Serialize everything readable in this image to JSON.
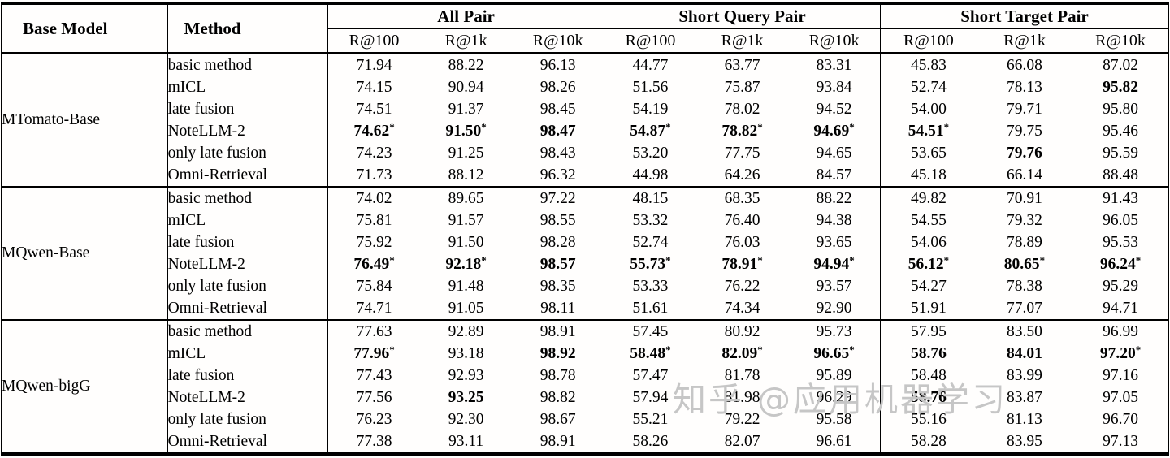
{
  "watermark": {
    "text": "知乎 @应用机器学习",
    "color": "#c6c6c6"
  },
  "table": {
    "header": {
      "base_model": "Base Model",
      "method": "Method"
    },
    "groups": [
      {
        "label": "All Pair",
        "subcols": [
          "R@100",
          "R@1k",
          "R@10k"
        ]
      },
      {
        "label": "Short Query Pair",
        "subcols": [
          "R@100",
          "R@1k",
          "R@10k"
        ]
      },
      {
        "label": "Short Target Pair",
        "subcols": [
          "R@100",
          "R@1k",
          "R@10k"
        ]
      }
    ],
    "blocks": [
      {
        "base_model": "MTomato-Base",
        "rows": [
          {
            "method": "basic method",
            "cells": [
              {
                "v": "71.94"
              },
              {
                "v": "88.22"
              },
              {
                "v": "96.13"
              },
              {
                "v": "44.77"
              },
              {
                "v": "63.77"
              },
              {
                "v": "83.31"
              },
              {
                "v": "45.83"
              },
              {
                "v": "66.08"
              },
              {
                "v": "87.02"
              }
            ]
          },
          {
            "method": "mICL",
            "cells": [
              {
                "v": "74.15"
              },
              {
                "v": "90.94"
              },
              {
                "v": "98.26"
              },
              {
                "v": "51.56"
              },
              {
                "v": "75.87"
              },
              {
                "v": "93.84"
              },
              {
                "v": "52.74"
              },
              {
                "v": "78.13"
              },
              {
                "v": "95.82",
                "b": 1
              }
            ]
          },
          {
            "method": "late fusion",
            "cells": [
              {
                "v": "74.51"
              },
              {
                "v": "91.37"
              },
              {
                "v": "98.45"
              },
              {
                "v": "54.19"
              },
              {
                "v": "78.02"
              },
              {
                "v": "94.52"
              },
              {
                "v": "54.00"
              },
              {
                "v": "79.71"
              },
              {
                "v": "95.80"
              }
            ]
          },
          {
            "method": "NoteLLM-2",
            "cells": [
              {
                "v": "74.62",
                "b": 1,
                "s": 1
              },
              {
                "v": "91.50",
                "b": 1,
                "s": 1
              },
              {
                "v": "98.47",
                "b": 1
              },
              {
                "v": "54.87",
                "b": 1,
                "s": 1
              },
              {
                "v": "78.82",
                "b": 1,
                "s": 1
              },
              {
                "v": "94.69",
                "b": 1,
                "s": 1
              },
              {
                "v": "54.51",
                "b": 1,
                "s": 1
              },
              {
                "v": "79.75"
              },
              {
                "v": "95.46"
              }
            ]
          },
          {
            "method": "only late fusion",
            "cells": [
              {
                "v": "74.23"
              },
              {
                "v": "91.25"
              },
              {
                "v": "98.43"
              },
              {
                "v": "53.20"
              },
              {
                "v": "77.75"
              },
              {
                "v": "94.65"
              },
              {
                "v": "53.65"
              },
              {
                "v": "79.76",
                "b": 1
              },
              {
                "v": "95.59"
              }
            ]
          },
          {
            "method": "Omni-Retrieval",
            "cells": [
              {
                "v": "71.73"
              },
              {
                "v": "88.12"
              },
              {
                "v": "96.32"
              },
              {
                "v": "44.98"
              },
              {
                "v": "64.26"
              },
              {
                "v": "84.57"
              },
              {
                "v": "45.18"
              },
              {
                "v": "66.14"
              },
              {
                "v": "88.48"
              }
            ]
          }
        ]
      },
      {
        "base_model": "MQwen-Base",
        "rows": [
          {
            "method": "basic method",
            "cells": [
              {
                "v": "74.02"
              },
              {
                "v": "89.65"
              },
              {
                "v": "97.22"
              },
              {
                "v": "48.15"
              },
              {
                "v": "68.35"
              },
              {
                "v": "88.22"
              },
              {
                "v": "49.82"
              },
              {
                "v": "70.91"
              },
              {
                "v": "91.43"
              }
            ]
          },
          {
            "method": "mICL",
            "cells": [
              {
                "v": "75.81"
              },
              {
                "v": "91.57"
              },
              {
                "v": "98.55"
              },
              {
                "v": "53.32"
              },
              {
                "v": "76.40"
              },
              {
                "v": "94.38"
              },
              {
                "v": "54.55"
              },
              {
                "v": "79.32"
              },
              {
                "v": "96.05"
              }
            ]
          },
          {
            "method": "late fusion",
            "cells": [
              {
                "v": "75.92"
              },
              {
                "v": "91.50"
              },
              {
                "v": "98.28"
              },
              {
                "v": "52.74"
              },
              {
                "v": "76.03"
              },
              {
                "v": "93.65"
              },
              {
                "v": "54.06"
              },
              {
                "v": "78.89"
              },
              {
                "v": "95.53"
              }
            ]
          },
          {
            "method": "NoteLLM-2",
            "cells": [
              {
                "v": "76.49",
                "b": 1,
                "s": 1
              },
              {
                "v": "92.18",
                "b": 1,
                "s": 1
              },
              {
                "v": "98.57",
                "b": 1
              },
              {
                "v": "55.73",
                "b": 1,
                "s": 1
              },
              {
                "v": "78.91",
                "b": 1,
                "s": 1
              },
              {
                "v": "94.94",
                "b": 1,
                "s": 1
              },
              {
                "v": "56.12",
                "b": 1,
                "s": 1
              },
              {
                "v": "80.65",
                "b": 1,
                "s": 1
              },
              {
                "v": "96.24",
                "b": 1,
                "s": 1
              }
            ]
          },
          {
            "method": "only late fusion",
            "cells": [
              {
                "v": "75.84"
              },
              {
                "v": "91.48"
              },
              {
                "v": "98.35"
              },
              {
                "v": "53.33"
              },
              {
                "v": "76.22"
              },
              {
                "v": "93.57"
              },
              {
                "v": "54.27"
              },
              {
                "v": "78.38"
              },
              {
                "v": "95.29"
              }
            ]
          },
          {
            "method": "Omni-Retrieval",
            "cells": [
              {
                "v": "74.71"
              },
              {
                "v": "91.05"
              },
              {
                "v": "98.11"
              },
              {
                "v": "51.61"
              },
              {
                "v": "74.34"
              },
              {
                "v": "92.90"
              },
              {
                "v": "51.91"
              },
              {
                "v": "77.07"
              },
              {
                "v": "94.71"
              }
            ]
          }
        ]
      },
      {
        "base_model": "MQwen-bigG",
        "rows": [
          {
            "method": "basic method",
            "cells": [
              {
                "v": "77.63"
              },
              {
                "v": "92.89"
              },
              {
                "v": "98.91"
              },
              {
                "v": "57.45"
              },
              {
                "v": "80.92"
              },
              {
                "v": "95.73"
              },
              {
                "v": "57.95"
              },
              {
                "v": "83.50"
              },
              {
                "v": "96.99"
              }
            ]
          },
          {
            "method": "mICL",
            "cells": [
              {
                "v": "77.96",
                "b": 1,
                "s": 1
              },
              {
                "v": "93.18"
              },
              {
                "v": "98.92",
                "b": 1
              },
              {
                "v": "58.48",
                "b": 1,
                "s": 1
              },
              {
                "v": "82.09",
                "b": 1,
                "s": 1
              },
              {
                "v": "96.65",
                "b": 1,
                "s": 1
              },
              {
                "v": "58.76",
                "b": 1
              },
              {
                "v": "84.01",
                "b": 1
              },
              {
                "v": "97.20",
                "b": 1,
                "s": 1
              }
            ]
          },
          {
            "method": "late fusion",
            "cells": [
              {
                "v": "77.43"
              },
              {
                "v": "92.93"
              },
              {
                "v": "98.78"
              },
              {
                "v": "57.47"
              },
              {
                "v": "81.78"
              },
              {
                "v": "95.89"
              },
              {
                "v": "58.48"
              },
              {
                "v": "83.99"
              },
              {
                "v": "97.16"
              }
            ]
          },
          {
            "method": "NoteLLM-2",
            "cells": [
              {
                "v": "77.56"
              },
              {
                "v": "93.25",
                "b": 1
              },
              {
                "v": "98.82"
              },
              {
                "v": "57.94"
              },
              {
                "v": "81.98"
              },
              {
                "v": "96.29"
              },
              {
                "v": "58.76",
                "b": 1
              },
              {
                "v": "83.87"
              },
              {
                "v": "97.05"
              }
            ]
          },
          {
            "method": "only late fusion",
            "cells": [
              {
                "v": "76.23"
              },
              {
                "v": "92.30"
              },
              {
                "v": "98.67"
              },
              {
                "v": "55.21"
              },
              {
                "v": "79.22"
              },
              {
                "v": "95.58"
              },
              {
                "v": "55.16"
              },
              {
                "v": "81.13"
              },
              {
                "v": "96.70"
              }
            ]
          },
          {
            "method": "Omni-Retrieval",
            "cells": [
              {
                "v": "77.38"
              },
              {
                "v": "93.11"
              },
              {
                "v": "98.91"
              },
              {
                "v": "58.26"
              },
              {
                "v": "82.07"
              },
              {
                "v": "96.61"
              },
              {
                "v": "58.28"
              },
              {
                "v": "83.95"
              },
              {
                "v": "97.13"
              }
            ]
          }
        ]
      }
    ]
  }
}
